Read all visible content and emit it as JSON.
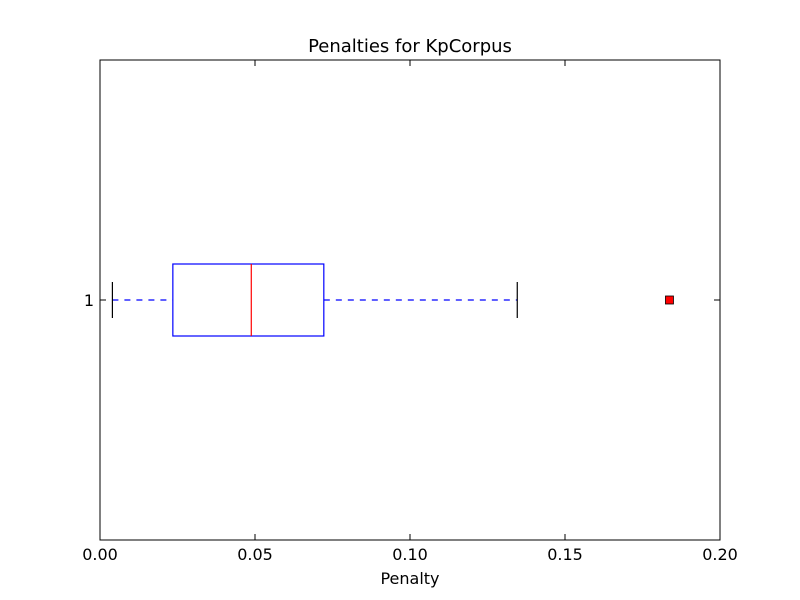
{
  "chart_data": {
    "type": "boxplot",
    "title": "Penalties for KpCorpus",
    "xlabel": "Penalty",
    "ylabel": "",
    "orientation": "horizontal",
    "xlim": [
      0.0,
      0.2
    ],
    "xticks": [
      0.0,
      0.05,
      0.1,
      0.15,
      0.2
    ],
    "xtick_labels": [
      "0.00",
      "0.05",
      "0.10",
      "0.15",
      "0.20"
    ],
    "grid": false,
    "series": [
      {
        "category": "1",
        "whisker_low": 0.004,
        "q1": 0.0235,
        "median": 0.0488,
        "q3": 0.0722,
        "whisker_high": 0.1346,
        "outliers": [
          0.1837
        ]
      }
    ],
    "colors": {
      "box": "#0000ff",
      "median": "#ff0000",
      "whisker": "#0000ff",
      "cap": "#000000",
      "outlier_fill": "#ff0000",
      "outlier_edge": "#000000",
      "axes": "#000000"
    }
  }
}
